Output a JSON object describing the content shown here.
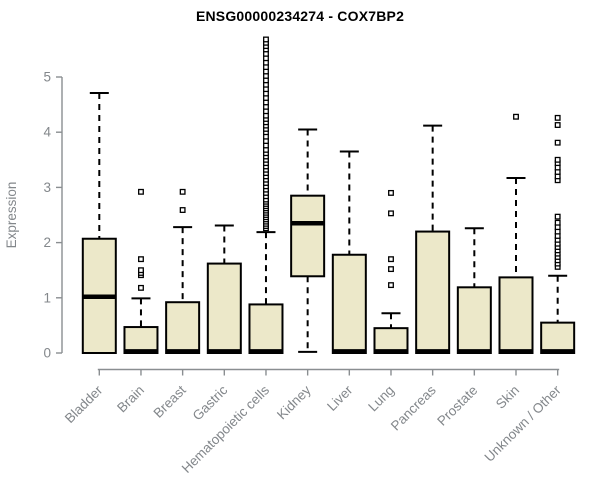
{
  "chart_data": {
    "type": "boxplot",
    "title": "ENSG00000234274 - COX7BP2",
    "xlabel": "",
    "ylabel": "Expression",
    "ylim": [
      0,
      5
    ],
    "yticks": [
      0,
      1,
      2,
      3,
      4,
      5
    ],
    "grid": false,
    "legend": "none",
    "colors": {
      "box_fill": "#ece8c9",
      "box_stroke": "#000000",
      "median": "#000000",
      "whisker": "#000000",
      "outlier_fill": "#ffffff",
      "outlier_stroke": "#000000",
      "axis": "#8a8e91",
      "tick_label": "#83878b",
      "title": "#000000",
      "background": "#ffffff"
    },
    "categories": [
      "Bladder",
      "Brain",
      "Breast",
      "Gastric",
      "Hematopoietic cells",
      "Kidney",
      "Liver",
      "Lung",
      "Pancreas",
      "Prostate",
      "Skin",
      "Unknown / Other"
    ],
    "series": [
      {
        "name": "Bladder",
        "low": 0,
        "q1": 0,
        "median": 1.02,
        "q3": 2.07,
        "high": 4.71,
        "outliers": []
      },
      {
        "name": "Brain",
        "low": 0,
        "q1": 0,
        "median": 0.03,
        "q3": 0.47,
        "high": 0.99,
        "outliers": [
          1.18,
          1.41,
          1.45,
          1.5,
          1.7,
          2.92
        ]
      },
      {
        "name": "Breast",
        "low": 0,
        "q1": 0,
        "median": 0.03,
        "q3": 0.92,
        "high": 2.28,
        "outliers": [
          2.59,
          2.92
        ]
      },
      {
        "name": "Gastric",
        "low": 0,
        "q1": 0,
        "median": 0.03,
        "q3": 1.62,
        "high": 2.31,
        "outliers": []
      },
      {
        "name": "Hematopoietic cells",
        "low": 0,
        "q1": 0,
        "median": 0.03,
        "q3": 0.88,
        "high": 2.19,
        "outliers": [
          2.26,
          2.3,
          2.34,
          2.38,
          2.42,
          2.46,
          2.5,
          2.54,
          2.58,
          2.62,
          2.66,
          2.7,
          2.74,
          2.78,
          2.84,
          2.9,
          2.96,
          3.02,
          3.08,
          3.14,
          3.2,
          3.26,
          3.32,
          3.38,
          3.44,
          3.5,
          3.56,
          3.62,
          3.68,
          3.76,
          3.84,
          3.92,
          4.0,
          4.06,
          4.12,
          4.18,
          4.24,
          4.3,
          4.38,
          4.46,
          4.54,
          4.62,
          4.7,
          4.78,
          4.86,
          4.94,
          5.02,
          5.1,
          5.18,
          5.26,
          5.34,
          5.42,
          5.5,
          5.56,
          5.62,
          5.68
        ]
      },
      {
        "name": "Kidney",
        "low": 0.02,
        "q1": 1.39,
        "median": 2.35,
        "q3": 2.85,
        "high": 4.05,
        "outliers": []
      },
      {
        "name": "Liver",
        "low": 0,
        "q1": 0,
        "median": 0.03,
        "q3": 1.78,
        "high": 3.65,
        "outliers": []
      },
      {
        "name": "Lung",
        "low": 0,
        "q1": 0,
        "median": 0.03,
        "q3": 0.45,
        "high": 0.72,
        "outliers": [
          1.23,
          1.52,
          1.7,
          2.53,
          2.9
        ]
      },
      {
        "name": "Pancreas",
        "low": 0,
        "q1": 0,
        "median": 0.03,
        "q3": 2.2,
        "high": 4.12,
        "outliers": []
      },
      {
        "name": "Prostate",
        "low": 0,
        "q1": 0,
        "median": 0.03,
        "q3": 1.19,
        "high": 2.26,
        "outliers": []
      },
      {
        "name": "Skin",
        "low": 0,
        "q1": 0,
        "median": 0.03,
        "q3": 1.37,
        "high": 3.17,
        "outliers": [
          4.28
        ]
      },
      {
        "name": "Unknown / Other",
        "low": 0,
        "q1": 0,
        "median": 0.03,
        "q3": 0.55,
        "high": 1.4,
        "outliers": [
          1.56,
          1.62,
          1.68,
          1.74,
          1.8,
          1.86,
          1.92,
          1.98,
          2.05,
          2.12,
          2.2,
          2.28,
          2.36,
          2.47,
          3.13,
          3.2,
          3.28,
          3.36,
          3.44,
          3.5,
          3.81,
          4.13,
          4.26
        ]
      }
    ]
  }
}
